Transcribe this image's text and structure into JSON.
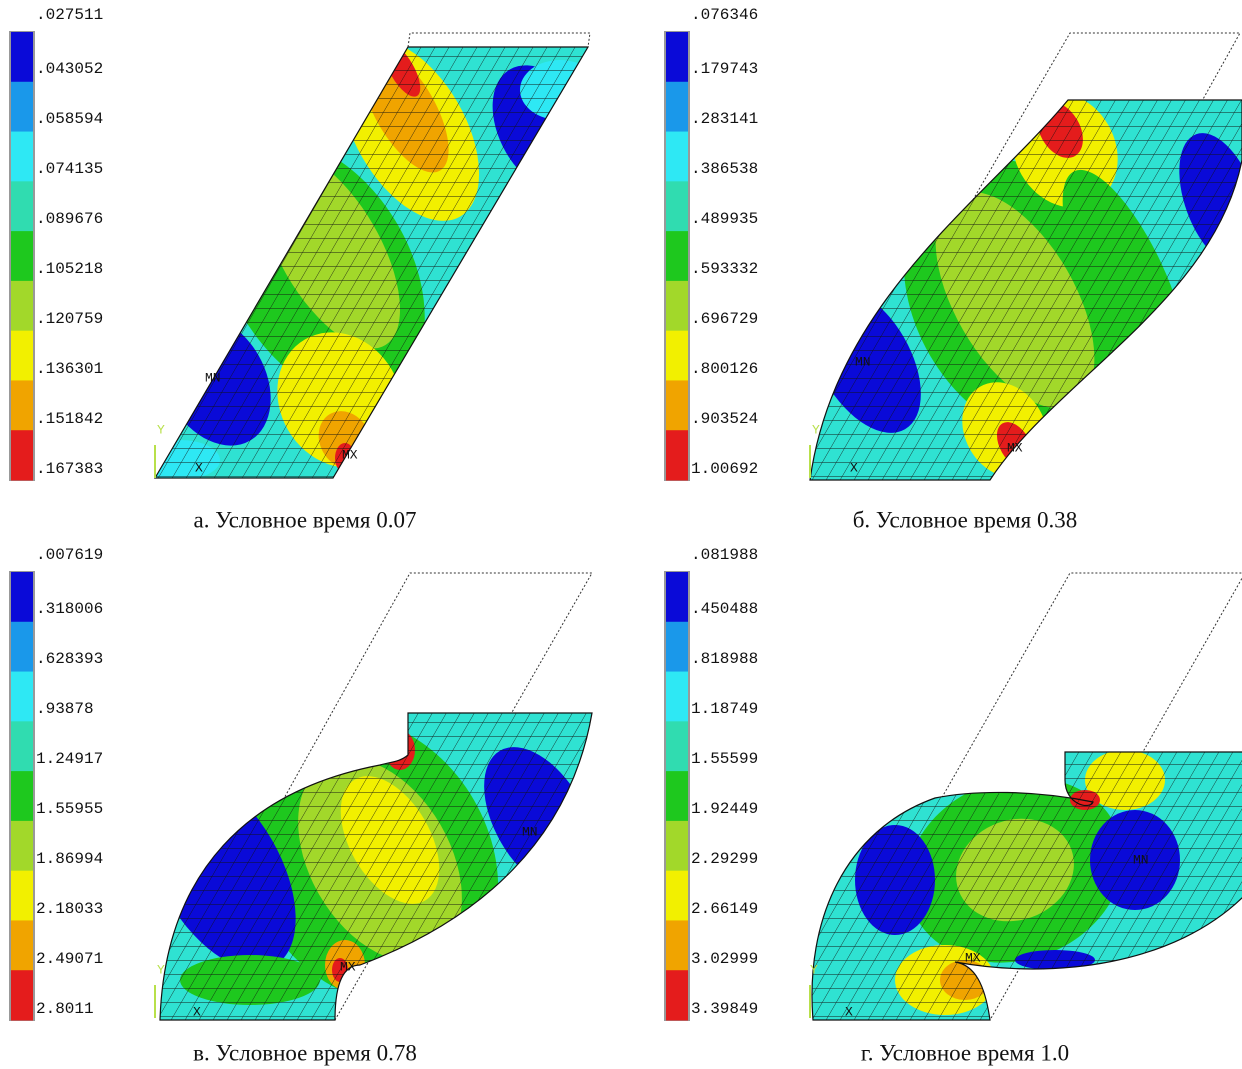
{
  "panels": [
    {
      "legend": [
        ".027511",
        ".043052",
        ".058594",
        ".074135",
        ".089676",
        ".105218",
        ".120759",
        ".136301",
        ".151842",
        ".167383"
      ],
      "caption": "а. Условное время 0.07",
      "min_label": "MN",
      "max_label": "MX",
      "x_axis": "X",
      "y_axis": "Y"
    },
    {
      "legend": [
        ".076346",
        ".179743",
        ".283141",
        ".386538",
        ".489935",
        ".593332",
        ".696729",
        ".800126",
        ".903524",
        "1.00692"
      ],
      "caption": "б. Условное время 0.38",
      "min_label": "MN",
      "max_label": "MX",
      "x_axis": "X",
      "y_axis": "Y"
    },
    {
      "legend": [
        ".007619",
        ".318006",
        ".628393",
        ".93878",
        "1.24917",
        "1.55955",
        "1.86994",
        "2.18033",
        "2.49071",
        "2.8011"
      ],
      "caption": "в. Условное время 0.78",
      "min_label": "MN",
      "max_label": "MX",
      "x_axis": "X",
      "y_axis": "Y"
    },
    {
      "legend": [
        ".081988",
        ".450488",
        ".818988",
        "1.18749",
        "1.55599",
        "1.92449",
        "2.29299",
        "2.66149",
        "3.02999",
        "3.39849"
      ],
      "caption": "г. Условное время 1.0",
      "min_label": "MN",
      "max_label": "MX",
      "x_axis": "X",
      "y_axis": "Y"
    }
  ],
  "colorbar_colors": [
    "#0a0ad8",
    "#1a98ea",
    "#2ee8f4",
    "#30dcb0",
    "#1ec81e",
    "#a2d82a",
    "#f2f000",
    "#f0a400",
    "#e41c1c"
  ]
}
